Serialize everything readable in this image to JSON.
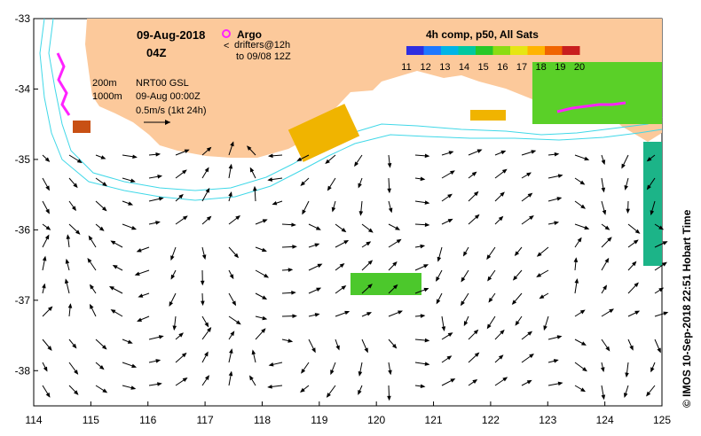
{
  "map": {
    "title_date": "09-Aug-2018",
    "title_time": "04Z",
    "legend": {
      "argo_label": "Argo",
      "drifters_label": "drifters@12h",
      "drifters_to": "to 09/08 12Z"
    },
    "contours": {
      "depth_200": "200m",
      "depth_1000": "1000m"
    },
    "product": {
      "line1": "NRT00 GSL",
      "line2": "09-Aug 00:00Z",
      "scale_label": "0.5m/s (1kt 24h)"
    },
    "colorbar": {
      "title": "4h comp, p50, All Sats",
      "ticks": [
        "11",
        "12",
        "13",
        "14",
        "15",
        "16",
        "17",
        "18",
        "19",
        "20"
      ],
      "colors": [
        "#2e2ee0",
        "#1e78ff",
        "#00b4e6",
        "#00c8a0",
        "#28c828",
        "#8cdc14",
        "#e6e614",
        "#ffb400",
        "#f06400",
        "#c81e1e"
      ]
    },
    "axes": {
      "x_ticks": [
        "114",
        "115",
        "116",
        "117",
        "118",
        "119",
        "120",
        "121",
        "122",
        "123",
        "124",
        "125"
      ],
      "y_ticks": [
        "-33",
        "-34",
        "-35",
        "-36",
        "-37",
        "-38"
      ],
      "x_range": [
        114,
        125
      ],
      "y_range": [
        -38.5,
        -33
      ]
    },
    "credit": "© IMOS 10-Sep-2018 22:51 Hobart Time",
    "land_color": "#fcc99b",
    "contour_color": "#40d8e8",
    "drifter_color": "#ff22ff"
  }
}
